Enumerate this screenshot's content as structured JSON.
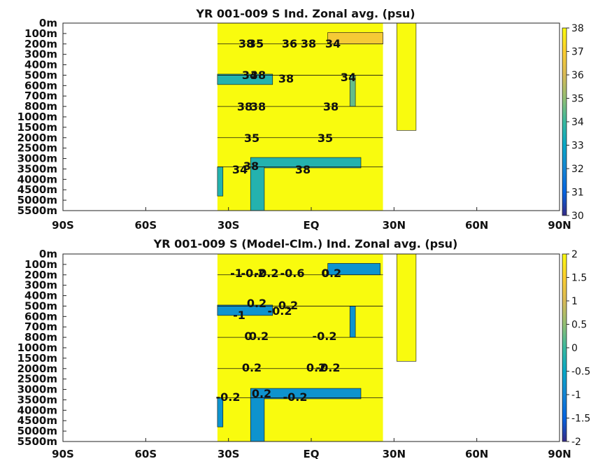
{
  "chart_data": [
    {
      "type": "heatmap",
      "title": "YR 001-009 S Ind. Zonal avg. (psu)",
      "xticks": [
        "90S",
        "60S",
        "30S",
        "EQ",
        "30N",
        "60N",
        "90N"
      ],
      "x_values": [
        -90,
        -60,
        -30,
        0,
        30,
        60,
        90
      ],
      "yticks": [
        "0m",
        "100m",
        "200m",
        "300m",
        "400m",
        "500m",
        "600m",
        "700m",
        "800m",
        "1000m",
        "1500m",
        "2000m",
        "2500m",
        "3000m",
        "3500m",
        "4000m",
        "4500m",
        "5000m",
        "5500m"
      ],
      "colorbar": {
        "min": 30,
        "max": 38,
        "ticks": [
          "38",
          "37",
          "36",
          "35",
          "34",
          "33",
          "32",
          "31",
          "30"
        ]
      },
      "contour_labels": [
        "38",
        "35",
        "36",
        "38",
        "34",
        "34",
        "38",
        "38",
        "34",
        "38",
        "38",
        "38",
        "35",
        "35",
        "38",
        "38",
        "34"
      ],
      "regions": [
        {
          "lat": [
            -34,
            26
          ],
          "depth_idx": [
            0,
            18
          ],
          "value": 38
        },
        {
          "lat": [
            -34,
            -14
          ],
          "depth_idx": [
            4.9,
            5.9
          ],
          "value": 33.6
        },
        {
          "lat": [
            -22,
            18
          ],
          "depth_idx": [
            12.9,
            13.9
          ],
          "value": 33.6
        },
        {
          "lat": [
            -34,
            -32
          ],
          "depth_idx": [
            13.8,
            16.6
          ],
          "value": 33.6
        },
        {
          "lat": [
            -22,
            -17
          ],
          "depth_idx": [
            13.8,
            18
          ],
          "value": 33.6
        },
        {
          "lat": [
            6,
            26
          ],
          "depth_idx": [
            0.9,
            2
          ],
          "value": 36.8
        },
        {
          "lat": [
            14,
            16
          ],
          "depth_idx": [
            5,
            8
          ],
          "value": 34.5
        },
        {
          "lat": [
            31,
            38
          ],
          "depth_idx": [
            0,
            10.3
          ],
          "value": 38
        }
      ]
    },
    {
      "type": "heatmap",
      "title": "YR 001-009 S (Model-Clm.) Ind. Zonal avg. (psu)",
      "xticks": [
        "90S",
        "60S",
        "30S",
        "EQ",
        "30N",
        "60N",
        "90N"
      ],
      "x_values": [
        -90,
        -60,
        -30,
        0,
        30,
        60,
        90
      ],
      "yticks": [
        "0m",
        "100m",
        "200m",
        "300m",
        "400m",
        "500m",
        "600m",
        "700m",
        "800m",
        "1000m",
        "1500m",
        "2000m",
        "2500m",
        "3000m",
        "3500m",
        "4000m",
        "4500m",
        "5000m",
        "5500m"
      ],
      "colorbar": {
        "min": -2,
        "max": 2,
        "ticks": [
          "2",
          "1.5",
          "1",
          "0.5",
          "0",
          "-0.5",
          "-1",
          "-1.5",
          "-2"
        ]
      },
      "contour_labels": [
        "-1",
        "-0.2",
        "-0.2",
        "-0.6",
        "0",
        "0.2",
        "0.2",
        "-1",
        "-0.2",
        "0.2",
        "0",
        "0.2",
        "-0.2",
        "0.2",
        "0.2",
        "-0.2",
        "0.2",
        "-0.2",
        "-0.2"
      ],
      "regions": [
        {
          "lat": [
            -34,
            26
          ],
          "depth_idx": [
            0,
            18
          ],
          "value": 2
        },
        {
          "lat": [
            -34,
            -14
          ],
          "depth_idx": [
            4.9,
            5.9
          ],
          "value": -0.8
        },
        {
          "lat": [
            -22,
            18
          ],
          "depth_idx": [
            12.9,
            13.9
          ],
          "value": -0.8
        },
        {
          "lat": [
            -34,
            -32
          ],
          "depth_idx": [
            13.8,
            16.6
          ],
          "value": -0.8
        },
        {
          "lat": [
            -22,
            -17
          ],
          "depth_idx": [
            13.8,
            18
          ],
          "value": -0.8
        },
        {
          "lat": [
            6,
            25
          ],
          "depth_idx": [
            0.9,
            2
          ],
          "value": -0.8
        },
        {
          "lat": [
            14,
            16
          ],
          "depth_idx": [
            5,
            8
          ],
          "value": -0.8
        },
        {
          "lat": [
            31,
            38
          ],
          "depth_idx": [
            0,
            10.3
          ],
          "value": 2
        }
      ]
    }
  ]
}
